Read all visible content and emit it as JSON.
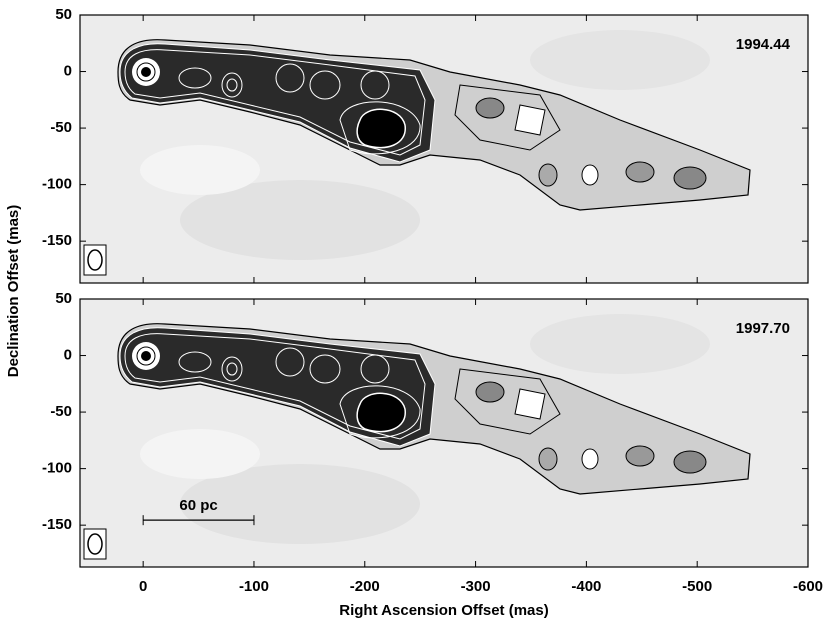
{
  "chart_data": [
    {
      "type": "contour",
      "annotation": "1994.44",
      "y_label": "Declination Offset (mas)",
      "xlim": [
        57,
        -600
      ],
      "ylim": [
        -187,
        50
      ],
      "yticks": [
        50,
        0,
        -50,
        -100,
        -150
      ]
    },
    {
      "type": "contour",
      "annotation": "1997.70",
      "x_label": "Right Ascension Offset (mas)",
      "xlim": [
        57,
        -600
      ],
      "ylim": [
        -187,
        50
      ],
      "yticks": [
        50,
        0,
        -50,
        -100,
        -150
      ],
      "xticks": [
        0,
        -100,
        -200,
        -300,
        -400,
        -500,
        -600
      ],
      "scalebar": {
        "label": "60 pc",
        "from": 0,
        "to": -100
      }
    }
  ]
}
